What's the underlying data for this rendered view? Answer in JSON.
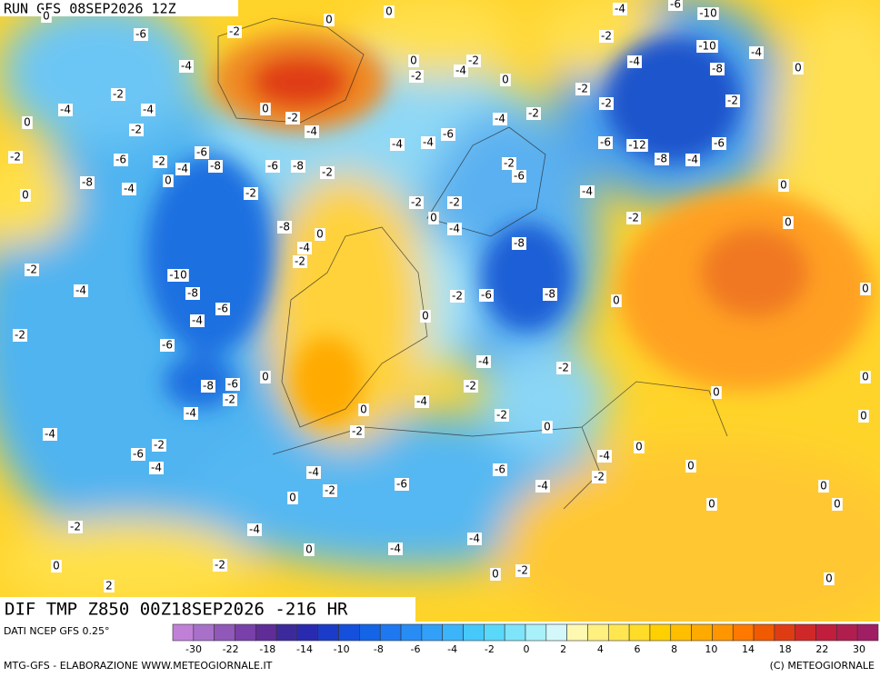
{
  "header": {
    "run": "RUN GFS 08SEP2026 12Z",
    "field": "DIF TMP Z850 00Z18SEP2026 -216 HR"
  },
  "map": {
    "contour_labels": [
      -6,
      -4,
      -2,
      -4,
      0,
      -4,
      -2,
      -2,
      -6,
      -8,
      -4,
      0,
      -6,
      -8,
      -2,
      -6,
      -8,
      -2,
      -8,
      -4,
      -10,
      -8,
      -6,
      -4,
      -4,
      -2,
      -2,
      -6,
      -8,
      -6,
      -2,
      -4,
      -4,
      -6,
      -2,
      -4,
      -2,
      -4,
      -2,
      0,
      -4,
      0,
      -2,
      0,
      2,
      -6,
      -4,
      -4,
      -6,
      -4,
      0,
      -2,
      -2,
      -4,
      0,
      0,
      -2,
      -2,
      -4,
      -4,
      0,
      -2,
      0,
      0,
      -2,
      -6,
      -8,
      -8,
      0,
      -2,
      -4,
      -2,
      -6,
      -2,
      -4,
      0,
      -2,
      -2,
      -4,
      -4,
      -6,
      -4,
      -2,
      -6,
      -12,
      -8,
      -4,
      -6,
      -2,
      -8,
      -10,
      -10,
      -4,
      0,
      0,
      -4,
      -2,
      -2,
      -2,
      0,
      -2,
      -4,
      0,
      -2,
      0,
      0,
      -2,
      -4,
      0,
      -2,
      -2,
      -4,
      0,
      -6,
      0,
      0,
      0,
      0,
      0,
      0,
      0,
      0,
      0,
      0,
      0,
      -4,
      -2,
      0
    ]
  },
  "colorbar": {
    "colors": [
      "#c080d8",
      "#a870c8",
      "#9058b8",
      "#7840a8",
      "#602c98",
      "#3c2a9c",
      "#2a2ab0",
      "#1a3cc8",
      "#1450dc",
      "#1464e6",
      "#1e78f0",
      "#288cf5",
      "#32a0f8",
      "#3cb4fa",
      "#46c8fa",
      "#5ad8fa",
      "#7ee4fa",
      "#a8f0fa",
      "#d4f8fa",
      "#fff8b0",
      "#fff080",
      "#ffe650",
      "#ffdc28",
      "#ffd000",
      "#ffbe00",
      "#ffaa00",
      "#ff9600",
      "#ff7800",
      "#f05a00",
      "#e03c14",
      "#d02828",
      "#c01e3c",
      "#b01e50",
      "#a01e64"
    ],
    "labels": [
      -30,
      -22,
      -18,
      -14,
      -10,
      -8,
      -6,
      -4,
      -2,
      0,
      2,
      4,
      6,
      8,
      10,
      14,
      18,
      22,
      30
    ]
  },
  "footer": {
    "source": "DATI NCEP GFS 0.25°",
    "credit": "MTG-GFS - ELABORAZIONE WWW.METEOGIORNALE.IT",
    "copyright": "(C) METEOGIORNALE"
  }
}
